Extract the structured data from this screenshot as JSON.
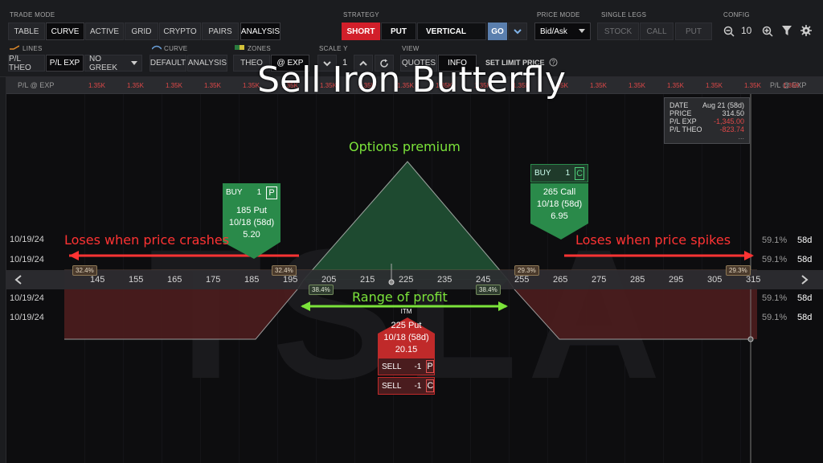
{
  "title": "Sell Iron Butterfly",
  "toolbar": {
    "trade_mode": {
      "label": "TRADE MODE",
      "tabs": [
        {
          "label": "TABLE",
          "active": false
        },
        {
          "label": "CURVE",
          "active": true
        },
        {
          "label": "ACTIVE",
          "active": false
        },
        {
          "label": "GRID",
          "active": false
        },
        {
          "label": "CRYPTO",
          "active": false
        },
        {
          "label": "PAIRS",
          "active": false
        },
        {
          "label": "ANALYSIS",
          "active": true
        }
      ]
    },
    "strategy": {
      "label": "STRATEGY",
      "short": "SHORT",
      "put": "PUT",
      "vertical": "VERTICAL",
      "go": "GO"
    },
    "price_mode": {
      "label": "PRICE MODE",
      "value": "Bid/Ask"
    },
    "single_legs": {
      "label": "SINGLE LEGS",
      "stock": "STOCK",
      "call": "CALL",
      "put": "PUT"
    },
    "config": {
      "label": "CONFIG",
      "zoom": "10"
    },
    "lines": {
      "label": "LINES",
      "pl_theo": "P/L THEO",
      "pl_exp": "P/L EXP",
      "greek": "NO GREEK"
    },
    "curve": {
      "label": "CURVE",
      "default": "DEFAULT",
      "analysis": "ANALYSIS"
    },
    "zones": {
      "label": "ZONES",
      "theo": "THEO",
      "exp": "@ EXP"
    },
    "scale_y": {
      "label": "SCALE Y",
      "value": "1"
    },
    "view": {
      "label": "VIEW",
      "quotes": "QUOTES",
      "info": "INFO"
    },
    "set_limit": "SET LIMIT PRICE"
  },
  "pl_row": {
    "left_label": "P/L @ EXP",
    "right_label": "P/L @ EXP",
    "values": [
      "1.35K",
      "1.35K",
      "1.35K",
      "1.35K",
      "1.35K",
      "1.35K",
      "1.35K",
      "1.35K",
      "1.35K",
      "1.35K",
      "1.35K",
      "1.35K",
      "1.35K",
      "1.35K",
      "1.35K",
      "1.35K",
      "1.35K",
      "1.35K",
      "1.35K"
    ]
  },
  "tooltip": {
    "rows": [
      {
        "k": "DATE",
        "v": "Aug 21 (58d)"
      },
      {
        "k": "PRICE",
        "v": "314.50"
      },
      {
        "k": "P/L EXP",
        "v": "-1,345.00"
      },
      {
        "k": "P/L THEO",
        "v": "-823.74"
      }
    ],
    "more": "..."
  },
  "annotations": {
    "options_premium": "Options premium",
    "range_of_profit": "Range of profit",
    "loses_crash": "Loses when price crashes",
    "loses_spike": "Loses when price spikes"
  },
  "cards": {
    "buy_put": {
      "action": "BUY",
      "qty": "1",
      "type": "P",
      "l1": "185 Put",
      "l2": "10/18 (58d)",
      "l3": "5.20"
    },
    "buy_call": {
      "action": "BUY",
      "qty": "1",
      "type": "C",
      "l1": "265 Call",
      "l2": "10/18 (58d)",
      "l3": "6.95"
    },
    "sell": {
      "itm": "ITM",
      "l1": "225 Put",
      "l2": "10/18 (58d)",
      "l3": "20.15"
    },
    "sell_put": {
      "action": "SELL",
      "qty": "-1",
      "type": "P"
    },
    "sell_call": {
      "action": "SELL",
      "qty": "-1",
      "type": "C"
    }
  },
  "pct_tags": [
    "32.4%",
    "32.4%",
    "29.3%",
    "29.3%",
    "38.4%",
    "38.4%"
  ],
  "x_axis": [
    "145",
    "155",
    "165",
    "175",
    "185",
    "195",
    "205",
    "215",
    "225",
    "235",
    "245",
    "255",
    "265",
    "275",
    "285",
    "295",
    "305",
    "315"
  ],
  "dates": [
    "10/19/24",
    "10/19/24",
    "10/19/24",
    "10/19/24"
  ],
  "right_vals": [
    {
      "pct": "59.1%",
      "days": "58d"
    },
    {
      "pct": "59.1%",
      "days": "58d"
    },
    {
      "pct": "59.1%",
      "days": "58d"
    },
    {
      "pct": "59.1%",
      "days": "58d"
    }
  ],
  "watermark": "TSLA",
  "colors": {
    "profit": "#1e5a35",
    "loss": "#5a1f1f",
    "short": "#d21f2a",
    "green_card": "#2a8a4a",
    "red_card": "#c02a2a",
    "annotation_red": "#ff3333",
    "annotation_green": "#7be33a"
  }
}
